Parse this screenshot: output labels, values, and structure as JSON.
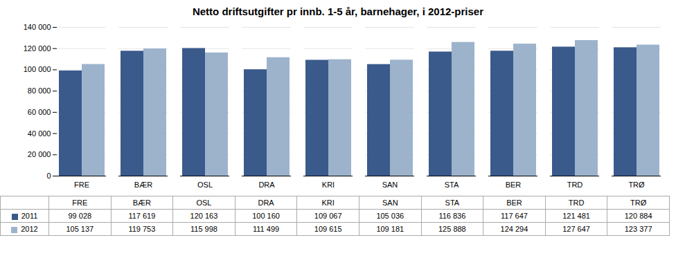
{
  "chart_data": {
    "type": "bar",
    "title": "Netto driftsutgifter pr innb. 1-5 år, barnehager, i 2012-priser",
    "categories": [
      "FRE",
      "BÆR",
      "OSL",
      "DRA",
      "KRI",
      "SAN",
      "STA",
      "BER",
      "TRD",
      "TRØ"
    ],
    "series": [
      {
        "name": "2011",
        "color": "#3A5A8C",
        "values": [
          99028,
          117619,
          120163,
          100160,
          109067,
          105036,
          116836,
          117647,
          121481,
          120884
        ],
        "value_labels": [
          "99 028",
          "117 619",
          "120 163",
          "100 160",
          "109 067",
          "105 036",
          "116 836",
          "117 647",
          "121 481",
          "120 884"
        ]
      },
      {
        "name": "2012",
        "color": "#9DB3CC",
        "values": [
          105137,
          119753,
          115998,
          111499,
          109615,
          109181,
          125888,
          124294,
          127647,
          123377
        ],
        "value_labels": [
          "105 137",
          "119 753",
          "115 998",
          "111 499",
          "109 615",
          "109 181",
          "125 888",
          "124 294",
          "127 647",
          "123 377"
        ]
      }
    ],
    "ylim": [
      0,
      140000
    ],
    "yticks": [
      0,
      {
        "value": 20000,
        "label": "20 000"
      },
      {
        "value": 40000,
        "label": "40 000"
      },
      {
        "value": 60000,
        "label": "60 000"
      },
      {
        "value": 80000,
        "label": "80 000"
      },
      {
        "value": 100000,
        "label": "100 000"
      },
      {
        "value": 120000,
        "label": "120 000"
      },
      {
        "value": 140000,
        "label": "140 000"
      }
    ],
    "grid": true
  }
}
